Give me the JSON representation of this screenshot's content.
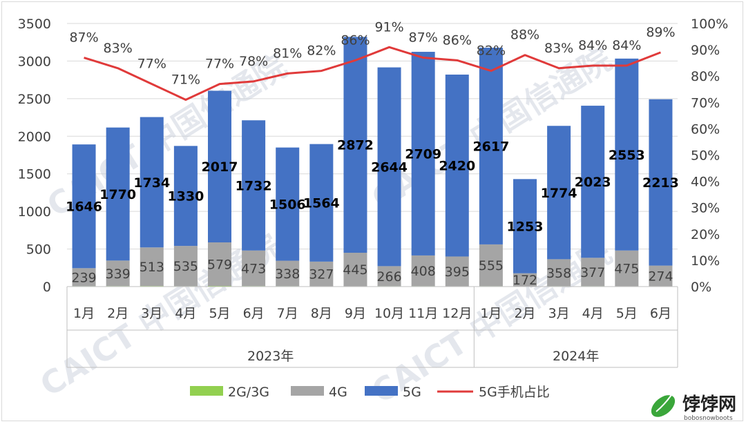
{
  "chart_data": {
    "type": "bar",
    "stacked": true,
    "categories": [
      "1月",
      "2月",
      "3月",
      "4月",
      "5月",
      "6月",
      "7月",
      "8月",
      "9月",
      "10月",
      "11月",
      "12月",
      "1月",
      "2月",
      "3月",
      "4月",
      "5月",
      "6月"
    ],
    "groups": [
      {
        "label": "2023年",
        "count": 12
      },
      {
        "label": "2024年",
        "count": 6
      }
    ],
    "series": [
      {
        "name": "2G/3G",
        "color": "#92d050",
        "values": [
          6,
          7,
          8,
          6,
          9,
          7,
          6,
          5,
          5,
          6,
          6,
          5,
          6,
          5,
          6,
          6,
          5,
          5
        ]
      },
      {
        "name": "4G",
        "color": "#a5a5a5",
        "values": [
          239,
          339,
          513,
          535,
          579,
          473,
          338,
          327,
          445,
          266,
          408,
          395,
          555,
          172,
          358,
          377,
          475,
          274
        ]
      },
      {
        "name": "5G",
        "color": "#4472c4",
        "values": [
          1646,
          1770,
          1734,
          1330,
          2017,
          1732,
          1506,
          1564,
          2872,
          2644,
          2709,
          2420,
          2617,
          1253,
          1774,
          2023,
          2553,
          2213
        ]
      }
    ],
    "line_series": {
      "name": "5G手机占比",
      "color": "#e03a3a",
      "axis": "right",
      "values": [
        87,
        83,
        77,
        71,
        77,
        78,
        81,
        82,
        86,
        91,
        87,
        86,
        82,
        88,
        83,
        84,
        84,
        89
      ],
      "labels": [
        "87%",
        "83%",
        "77%",
        "71%",
        "77%",
        "78%",
        "81%",
        "82%",
        "86%",
        "91%",
        "87%",
        "86%",
        "82%",
        "88%",
        "83%",
        "84%",
        "84%",
        "89%"
      ]
    },
    "y_left": {
      "min": 0,
      "max": 3500,
      "ticks": [
        "0",
        "500",
        "1000",
        "1500",
        "2000",
        "2500",
        "3000",
        "3500"
      ]
    },
    "y_right": {
      "min": 0,
      "max": 100,
      "ticks": [
        "0%",
        "10%",
        "20%",
        "30%",
        "40%",
        "50%",
        "60%",
        "70%",
        "80%",
        "90%",
        "100%"
      ]
    },
    "gridlines": true,
    "legend": {
      "position": "bottom",
      "items": [
        "2G/3G",
        "4G",
        "5G",
        "5G手机占比"
      ]
    }
  },
  "watermark": {
    "text": "CAICT 中国信通院"
  },
  "logo": {
    "text": "饽饽网",
    "sub": "bobosnowboots"
  }
}
